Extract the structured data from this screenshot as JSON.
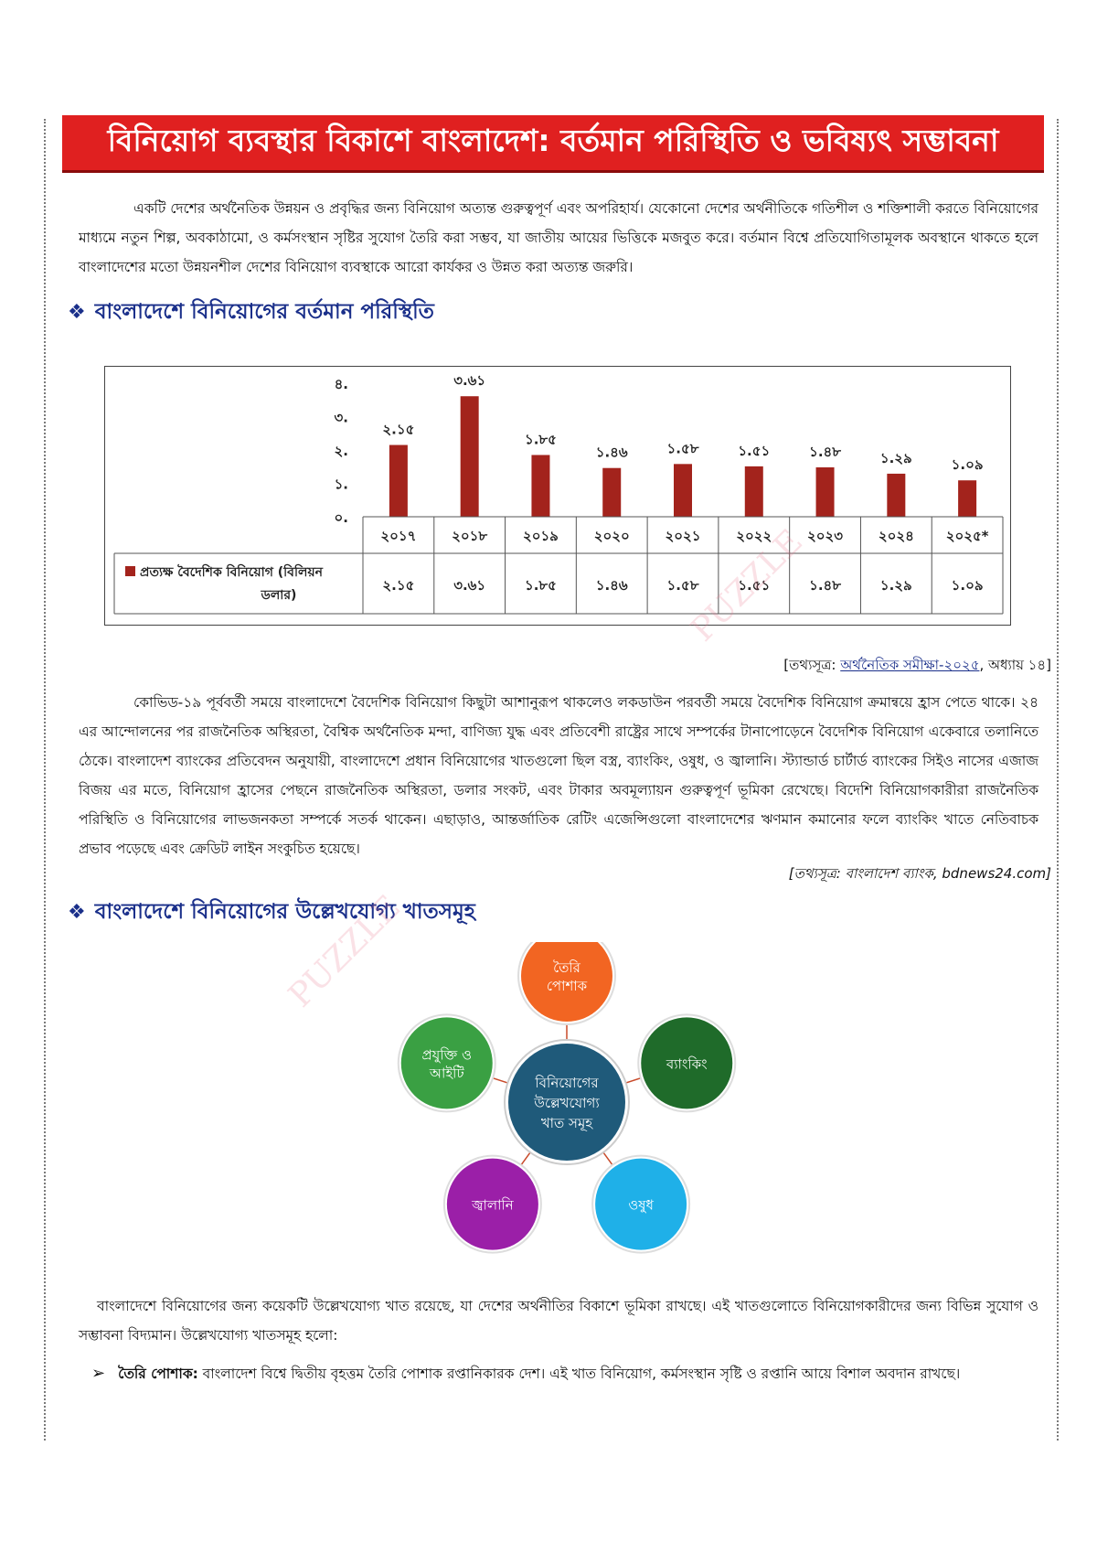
{
  "title": "বিনিয়োগ ব্যবস্থার বিকাশে বাংলাদেশ: বর্তমান পরিস্থিতি ও ভবিষ্যৎ সম্ভাবনা",
  "intro_paragraph": "একটি দেশের অর্থনৈতিক উন্নয়ন ও প্রবৃদ্ধির জন্য বিনিয়োগ অত্যন্ত গুরুত্বপূর্ণ এবং অপরিহার্য। যেকোনো দেশের অর্থনীতিকে গতিশীল ও শক্তিশালী করতে বিনিয়োগের মাধ্যমে নতুন শিল্প, অবকাঠামো, ও কর্মসংস্থান সৃষ্টির সুযোগ তৈরি করা সম্ভব, যা জাতীয় আয়ের ভিত্তিকে মজবুত করে। বর্তমান বিশ্বে প্রতিযোগিতামূলক অবস্থানে থাকতে হলে বাংলাদেশের মতো উন্নয়নশীল দেশের বিনিয়োগ ব্যবস্থাকে আরো কার্যকর ও উন্নত করা অত্যন্ত জরুরি।",
  "section1_heading": "বাংলাদেশে বিনিয়োগের বর্তমান পরিস্থিতি",
  "chart_data": {
    "type": "bar",
    "categories": [
      "২০১৭",
      "২০১৮",
      "২০১৯",
      "২০২০",
      "২০২১",
      "২০২২",
      "২০২৩",
      "২০২৪",
      "২০২৫*"
    ],
    "series": [
      {
        "name": "প্রত্যক্ষ বৈদেশিক বিনিয়োগ (বিলিয়ন ডলার)",
        "values": [
          2.15,
          3.61,
          1.85,
          1.46,
          1.58,
          1.51,
          1.48,
          1.29,
          1.09
        ],
        "labels": [
          "২.১৫",
          "৩.৬১",
          "১.৮৫",
          "১.৪৬",
          "১.৫৮",
          "১.৫১",
          "১.৪৮",
          "১.২৯",
          "১.০৯"
        ]
      }
    ],
    "ylim": [
      0,
      4
    ],
    "yticks": [
      0,
      1,
      2,
      3,
      4
    ],
    "ytick_labels": [
      "০.",
      "১.",
      "২.",
      "৩.",
      "৪."
    ],
    "bar_color": "#a3231c",
    "legend_placement": "bottom-table",
    "data_table": true
  },
  "source1": {
    "prefix": "[তথ্যসূত্র: ",
    "link": "অর্থনৈতিক সমীক্ষা-২০২৫",
    "suffix": ", অধ্যায় ১৪]"
  },
  "paragraph2": "কোভিড-১৯ পূর্ববর্তী সময়ে বাংলাদেশে বৈদেশিক বিনিয়োগ কিছুটা আশানুরূপ থাকলেও লকডাউন পরবর্তী সময়ে বৈদেশিক বিনিয়োগ ক্রমান্বয়ে হ্রাস পেতে থাকে। ২৪ এর আন্দোলনের পর রাজনৈতিক অস্থিরতা, বৈশ্বিক অর্থনৈতিক মন্দা, বাণিজ্য যুদ্ধ এবং প্রতিবেশী রাষ্ট্রের সাথে সম্পর্কের টানাপোড়েনে বৈদেশিক বিনিয়োগ একেবারে তলানিতে ঠেকে। বাংলাদেশ ব্যাংকের প্রতিবেদন অনুযায়ী, বাংলাদেশে প্রধান বিনিয়োগের খাতগুলো ছিল বস্ত্র, ব্যাংকিং, ওষুধ, ও জ্বালানি। স্ট্যান্ডার্ড চার্টার্ড ব্যাংকের সিইও নাসের এজাজ বিজয় এর মতে, বিনিয়োগ হ্রাসের পেছনে রাজনৈতিক অস্থিরতা, ডলার সংকট, এবং টাকার অবমূল্যায়ন গুরুত্বপূর্ণ ভূমিকা রেখেছে। বিদেশি বিনিয়োগকারীরা রাজনৈতিক পরিস্থিতি ও বিনিয়োগের লাভজনকতা সম্পর্কে সতর্ক থাকেন। এছাড়াও, আন্তর্জাতিক রেটিং এজেন্সিগুলো বাংলাদেশের ঋণমান কমানোর ফলে ব্যাংকিং খাতে নেতিবাচক প্রভাব পড়েছে এবং ক্রেডিট লাইন সংকুচিত হয়েছে।",
  "source2": "[তথ্যসূত্র: বাংলাদেশ ব্যাংক, bdnews24.com]",
  "section2_heading": "বাংলাদেশে বিনিয়োগের উল্লেখযোগ্য খাতসমূহ",
  "diagram": {
    "center": [
      "বিনিয়োগের",
      "উল্লেখযোগ্য",
      "খাত সমূহ"
    ],
    "center_color": "#1f5a7a",
    "nodes": [
      {
        "lines": [
          "তৈরি",
          "পোশাক"
        ],
        "color": "#f26522"
      },
      {
        "lines": [
          "ব্যাংকিং"
        ],
        "color": "#1f6b2a"
      },
      {
        "lines": [
          "ওষুধ"
        ],
        "color": "#1fb0e8"
      },
      {
        "lines": [
          "জ্বালানি"
        ],
        "color": "#9b1fa8"
      },
      {
        "lines": [
          "প্রযুক্তি ও",
          "আইটি"
        ],
        "color": "#3aa043"
      }
    ]
  },
  "paragraph3": "বাংলাদেশে বিনিয়োগের জন্য কয়েকটি উল্লেখযোগ্য খাত রয়েছে, যা দেশের অর্থনীতির বিকাশে ভূমিকা রাখছে। এই খাতগুলোতে বিনিয়োগকারীদের জন্য বিভিন্ন সুযোগ ও সম্ভাবনা বিদ্যমান। উল্লেখযোগ্য খাতসমূহ হলো:",
  "bullet1": {
    "term": "তৈরি পোশাক:",
    "text": "বাংলাদেশ বিশ্বে দ্বিতীয় বৃহত্তম তৈরি পোশাক রপ্তানিকারক দেশ। এই খাত বিনিয়োগ, কর্মসংস্থান সৃষ্টি ও রপ্তানি আয়ে বিশাল অবদান রাখছে।"
  },
  "watermark": "PUZZLE"
}
